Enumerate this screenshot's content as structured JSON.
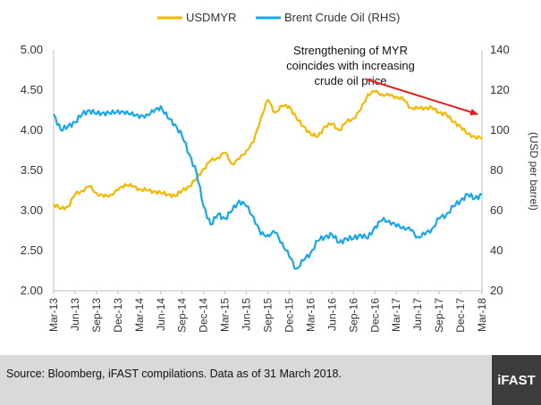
{
  "chart_data": {
    "type": "line",
    "legend": {
      "placement": "top-center",
      "entries": [
        "USDMYR",
        "Brent Crude Oil (RHS)"
      ]
    },
    "x_ticks": [
      "Mar-13",
      "Jun-13",
      "Sep-13",
      "Dec-13",
      "Mar-14",
      "Jun-14",
      "Sep-14",
      "Dec-14",
      "Mar-15",
      "Jun-15",
      "Sep-15",
      "Dec-15",
      "Mar-16",
      "Jun-16",
      "Sep-16",
      "Dec-16",
      "Mar-17",
      "Jun-17",
      "Sep-17",
      "Dec-17",
      "Mar-18"
    ],
    "left_axis": {
      "ylim": [
        2.0,
        5.0
      ],
      "ticks": [
        "2.00",
        "2.50",
        "3.00",
        "3.50",
        "4.00",
        "4.50",
        "5.00"
      ]
    },
    "right_axis": {
      "ylim": [
        20,
        140
      ],
      "ticks": [
        "20",
        "40",
        "60",
        "80",
        "100",
        "120",
        "140"
      ],
      "label": "(USD per barrel)"
    },
    "grid": false,
    "series": [
      {
        "name": "USDMYR",
        "color": "#f5b800",
        "axis": "left",
        "x": [
          "2013-03",
          "2013-04",
          "2013-05",
          "2013-06",
          "2013-07",
          "2013-08",
          "2013-09",
          "2013-10",
          "2013-11",
          "2013-12",
          "2014-01",
          "2014-02",
          "2014-03",
          "2014-04",
          "2014-05",
          "2014-06",
          "2014-07",
          "2014-08",
          "2014-09",
          "2014-10",
          "2014-11",
          "2014-12",
          "2015-01",
          "2015-02",
          "2015-03",
          "2015-04",
          "2015-05",
          "2015-06",
          "2015-07",
          "2015-08",
          "2015-09",
          "2015-10",
          "2015-11",
          "2015-12",
          "2016-01",
          "2016-02",
          "2016-03",
          "2016-04",
          "2016-05",
          "2016-06",
          "2016-07",
          "2016-08",
          "2016-09",
          "2016-10",
          "2016-11",
          "2016-12",
          "2017-01",
          "2017-02",
          "2017-03",
          "2017-04",
          "2017-05",
          "2017-06",
          "2017-07",
          "2017-08",
          "2017-09",
          "2017-10",
          "2017-11",
          "2017-12",
          "2018-01",
          "2018-02",
          "2018-03"
        ],
        "values": [
          3.08,
          3.02,
          3.05,
          3.2,
          3.25,
          3.3,
          3.22,
          3.17,
          3.2,
          3.25,
          3.33,
          3.3,
          3.27,
          3.25,
          3.24,
          3.22,
          3.2,
          3.18,
          3.25,
          3.3,
          3.4,
          3.52,
          3.62,
          3.66,
          3.72,
          3.58,
          3.64,
          3.75,
          3.85,
          4.15,
          4.38,
          4.22,
          4.3,
          4.3,
          4.15,
          4.05,
          3.95,
          3.92,
          4.05,
          4.08,
          4.0,
          4.1,
          4.15,
          4.25,
          4.45,
          4.48,
          4.45,
          4.43,
          4.42,
          4.38,
          4.28,
          4.27,
          4.28,
          4.28,
          4.22,
          4.2,
          4.1,
          4.05,
          3.95,
          3.92,
          3.9
        ]
      },
      {
        "name": "Brent Crude Oil (RHS)",
        "color": "#19a7e8",
        "axis": "right",
        "x": [
          "2013-03",
          "2013-04",
          "2013-05",
          "2013-06",
          "2013-07",
          "2013-08",
          "2013-09",
          "2013-10",
          "2013-11",
          "2013-12",
          "2014-01",
          "2014-02",
          "2014-03",
          "2014-04",
          "2014-05",
          "2014-06",
          "2014-07",
          "2014-08",
          "2014-09",
          "2014-10",
          "2014-11",
          "2014-12",
          "2015-01",
          "2015-02",
          "2015-03",
          "2015-04",
          "2015-05",
          "2015-06",
          "2015-07",
          "2015-08",
          "2015-09",
          "2015-10",
          "2015-11",
          "2015-12",
          "2016-01",
          "2016-02",
          "2016-03",
          "2016-04",
          "2016-05",
          "2016-06",
          "2016-07",
          "2016-08",
          "2016-09",
          "2016-10",
          "2016-11",
          "2016-12",
          "2017-01",
          "2017-02",
          "2017-03",
          "2017-04",
          "2017-05",
          "2017-06",
          "2017-07",
          "2017-08",
          "2017-09",
          "2017-10",
          "2017-11",
          "2017-12",
          "2018-01",
          "2018-02",
          "2018-03"
        ],
        "values": [
          108,
          100,
          102,
          104,
          108,
          110,
          108,
          109,
          108,
          110,
          108,
          109,
          106,
          108,
          109,
          112,
          106,
          103,
          97,
          88,
          79,
          62,
          53,
          58,
          56,
          60,
          65,
          62,
          57,
          48,
          48,
          49,
          44,
          37,
          31,
          35,
          39,
          45,
          47,
          48,
          44,
          46,
          46,
          48,
          46,
          52,
          55,
          55,
          52,
          52,
          50,
          47,
          48,
          51,
          56,
          58,
          62,
          65,
          68,
          66,
          68
        ]
      }
    ],
    "annotation": {
      "lines": [
        "Strengthening of MYR",
        "coincides with increasing",
        "crude oil price"
      ],
      "arrow_color": "#e0201a"
    }
  },
  "footer": {
    "source": "Source: Bloomberg, iFAST compilations. Data as of 31 March 2018.",
    "logo": "iFAST"
  }
}
